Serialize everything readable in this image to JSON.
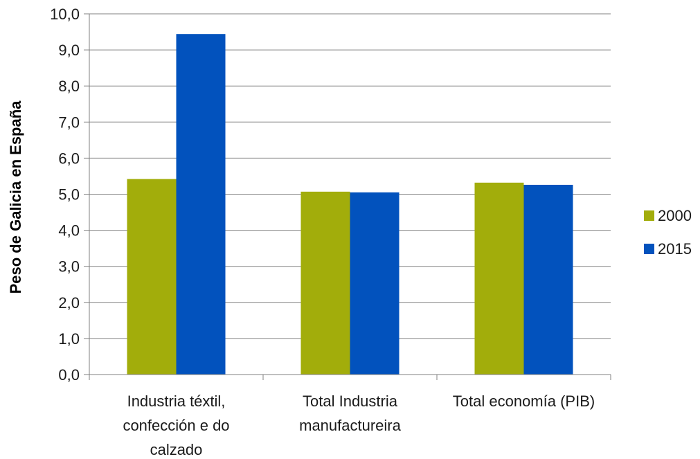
{
  "chart_data": {
    "type": "bar",
    "title": "",
    "xlabel": "",
    "ylabel": "Peso de Galicia en España",
    "ylim": [
      0,
      10
    ],
    "ytick_step": 1,
    "ytick_labels": [
      "0,0",
      "1,0",
      "2,0",
      "3,0",
      "4,0",
      "5,0",
      "6,0",
      "7,0",
      "8,0",
      "9,0",
      "10,0"
    ],
    "categories": [
      [
        "Industria téxtil,",
        "confección e do",
        "calzado"
      ],
      [
        "Total Industria",
        "manufactureira"
      ],
      [
        "Total economía (PIB)"
      ]
    ],
    "series": [
      {
        "name": "2000",
        "color": "#a2ad0b",
        "values": [
          5.42,
          5.07,
          5.32
        ]
      },
      {
        "name": "2015",
        "color": "#0252bd",
        "values": [
          9.44,
          5.05,
          5.26
        ]
      }
    ],
    "grid": true,
    "legend_position": "right"
  }
}
